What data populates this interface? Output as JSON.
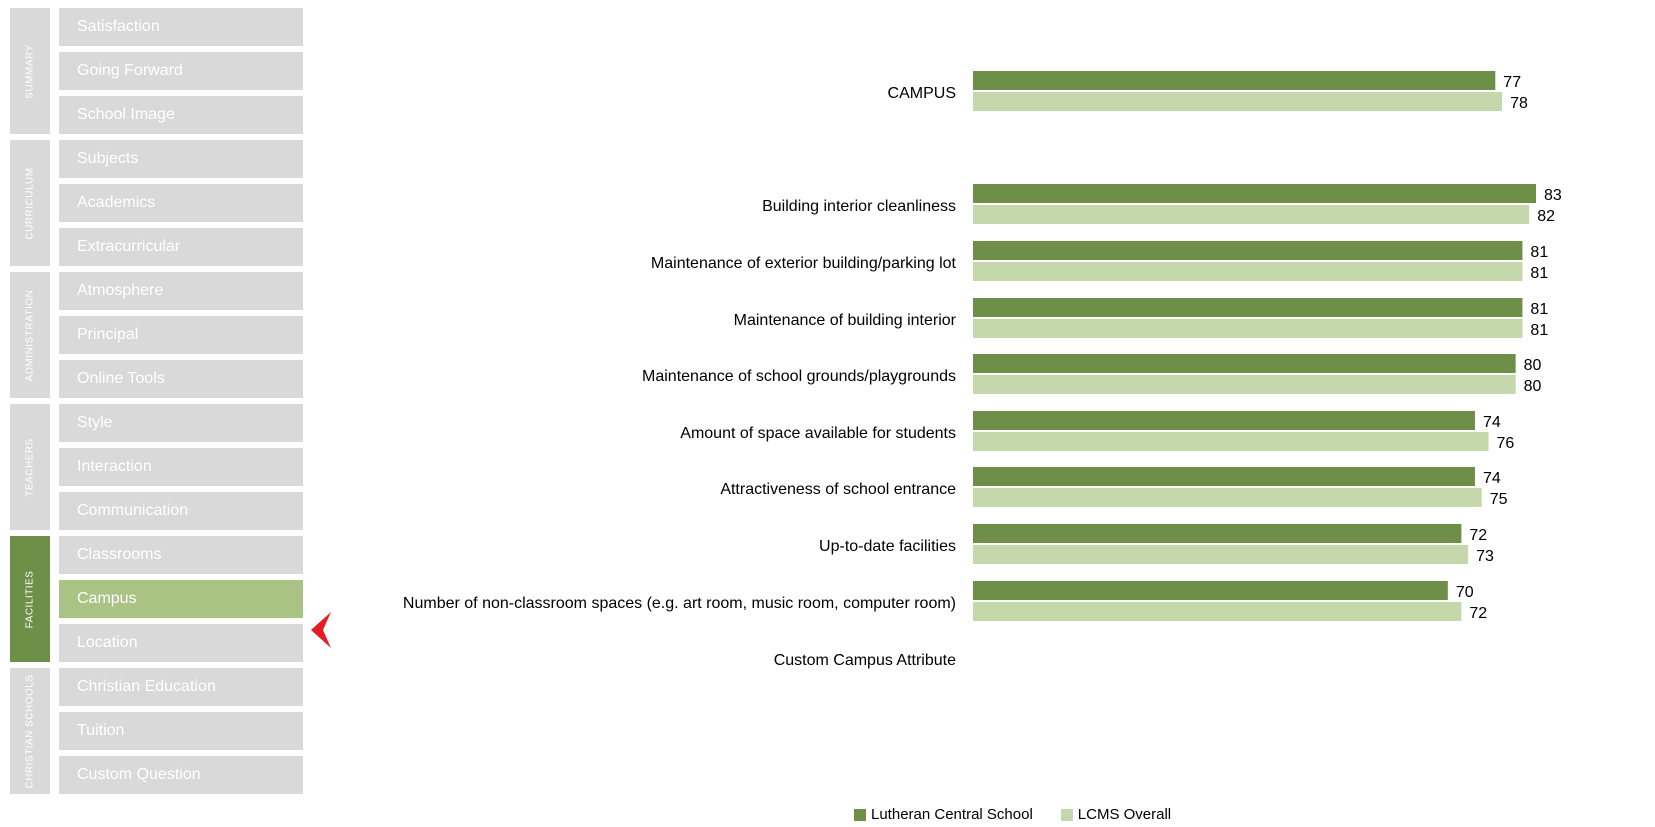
{
  "nav": {
    "sections": [
      {
        "label": "SUMMARY",
        "active": false,
        "items": [
          {
            "label": "Satisfaction",
            "active": false
          },
          {
            "label": "Going Forward",
            "active": false
          },
          {
            "label": "School Image",
            "active": false
          }
        ]
      },
      {
        "label": "CURRICULUM",
        "active": false,
        "items": [
          {
            "label": "Subjects",
            "active": false
          },
          {
            "label": "Academics",
            "active": false
          },
          {
            "label": "Extracurricular",
            "active": false
          }
        ]
      },
      {
        "label": "ADMINISTRATION",
        "active": false,
        "items": [
          {
            "label": "Atmosphere",
            "active": false
          },
          {
            "label": "Principal",
            "active": false
          },
          {
            "label": "Online Tools",
            "active": false
          }
        ]
      },
      {
        "label": "TEACHERS",
        "active": false,
        "items": [
          {
            "label": "Style",
            "active": false
          },
          {
            "label": "Interaction",
            "active": false
          },
          {
            "label": "Communication",
            "active": false
          }
        ]
      },
      {
        "label": "FACILITIES",
        "active": true,
        "items": [
          {
            "label": "Classrooms",
            "active": false
          },
          {
            "label": "Campus",
            "active": true
          },
          {
            "label": "Location",
            "active": false
          }
        ]
      },
      {
        "label": "CHRISTIAN SCHOOLS",
        "active": false,
        "items": [
          {
            "label": "Christian Education",
            "active": false
          },
          {
            "label": "Tuition",
            "active": false
          },
          {
            "label": "Custom Question",
            "active": false
          }
        ]
      }
    ],
    "pointer_icon": "red-arrow-pointer-icon",
    "colors": {
      "tab": "#d9d9d9",
      "tab_active": "#6e8f47",
      "item_active": "#a9c385",
      "pointer": "#e31e24"
    }
  },
  "chart_data": {
    "type": "bar",
    "orientation": "horizontal",
    "categories": [
      "CAMPUS",
      "Building interior cleanliness",
      "Maintenance of exterior building/parking lot",
      "Maintenance of building interior",
      "Maintenance of school grounds/playgrounds",
      "Amount of space available for students",
      "Attractiveness of school entrance",
      "Up-to-date facilities",
      "Number of non-classroom spaces (e.g. art room, music room, computer room)",
      "Custom Campus Attribute"
    ],
    "series": [
      {
        "name": "Lutheran Central School",
        "color": "#6e8f47",
        "values": [
          77,
          83,
          81,
          81,
          80,
          74,
          74,
          72,
          70,
          null
        ]
      },
      {
        "name": "LCMS Overall",
        "color": "#c5d8ab",
        "values": [
          78,
          82,
          81,
          81,
          80,
          76,
          75,
          73,
          72,
          null
        ]
      }
    ],
    "legend": "bottom-center",
    "grid": false,
    "axis_visible": false,
    "xlim": [
      0,
      83
    ]
  }
}
